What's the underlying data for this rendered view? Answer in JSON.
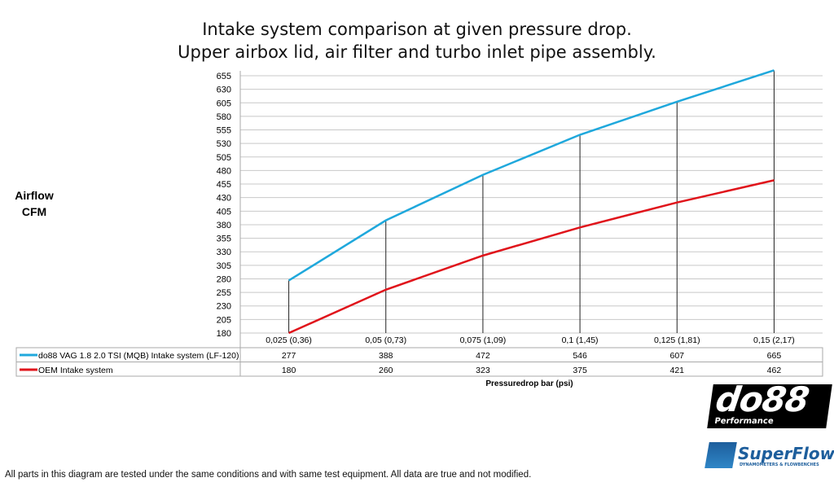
{
  "chart_data": {
    "type": "line",
    "title": [
      "Intake system comparison at given pressure drop.",
      "Upper airbox lid, air filter and turbo inlet pipe assembly."
    ],
    "ylabel": [
      "Airflow",
      "CFM"
    ],
    "xlabel": "Pressuredrop bar (psi)",
    "categories": [
      "0,025 (0,36)",
      "0,05 (0,73)",
      "0,075 (1,09)",
      "0,1 (1,45)",
      "0,125 (1,81)",
      "0,15 (2,17)"
    ],
    "ylim": [
      180,
      665
    ],
    "yticks": [
      180,
      205,
      230,
      255,
      280,
      305,
      330,
      355,
      380,
      405,
      430,
      455,
      480,
      505,
      530,
      555,
      580,
      605,
      630,
      655
    ],
    "grid": true,
    "legend": "data-table-below",
    "series": [
      {
        "name": "do88 VAG 1.8 2.0 TSI (MQB) Intake system (LF-120)",
        "color": "#1fa8dc",
        "values": [
          277,
          388,
          472,
          546,
          607,
          665
        ]
      },
      {
        "name": "OEM Intake system",
        "color": "#e0141b",
        "values": [
          180,
          260,
          323,
          375,
          421,
          462
        ]
      }
    ]
  },
  "footer": "All parts in this diagram are tested under the same conditions and with same test equipment. All data are true and not modified.",
  "logos": {
    "do88": "do88",
    "do88_sub": "Performance",
    "superflow": "SuperFlow",
    "superflow_sub": "DYNAMOMETERS & FLOWBENCHES"
  }
}
